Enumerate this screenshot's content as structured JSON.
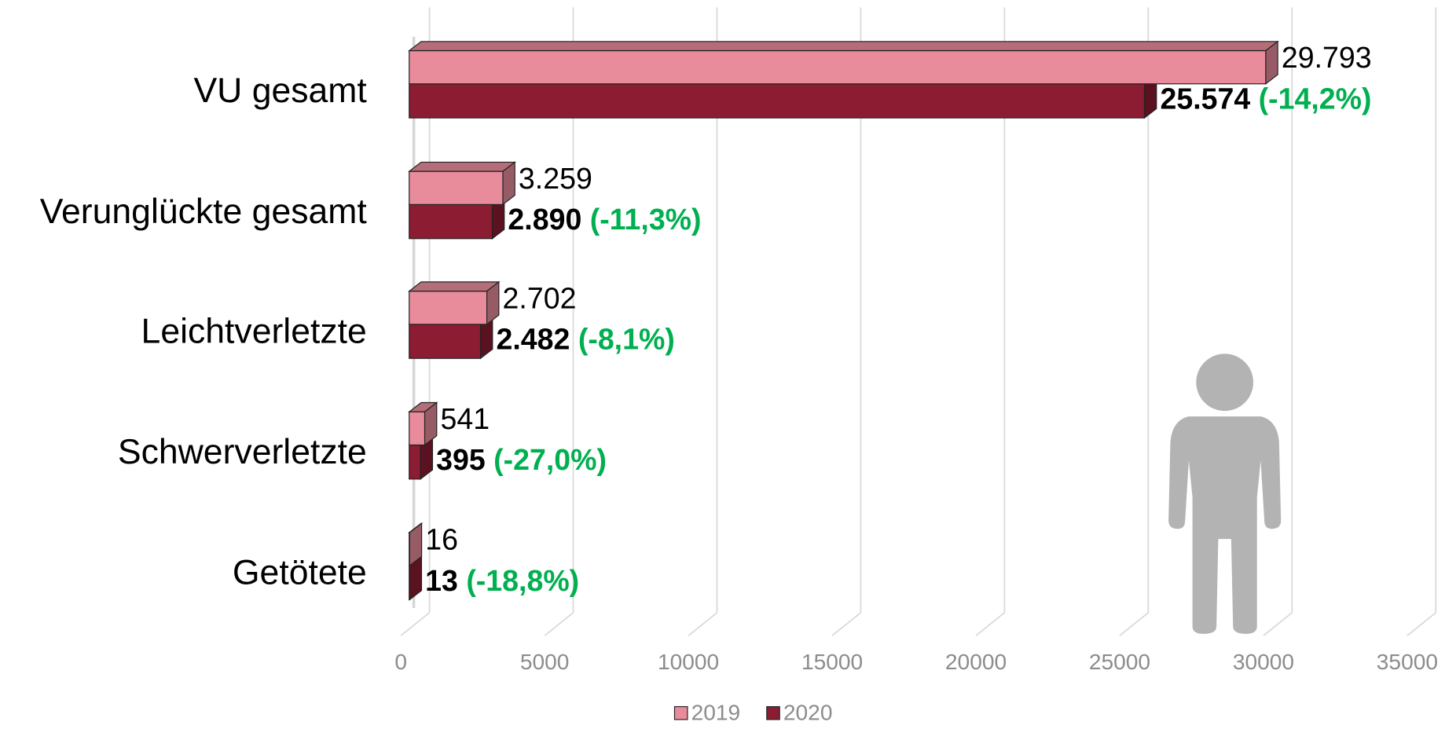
{
  "chart_data": {
    "type": "bar3d_horizontal",
    "categories": [
      "VU gesamt",
      "Verunglückte gesamt",
      "Leichtverletzte",
      "Schwerverletzte",
      "Getötete"
    ],
    "series": [
      {
        "name": "2019",
        "color": "#e88c9b",
        "values": [
          29793,
          3259,
          2702,
          541,
          16
        ],
        "value_labels": [
          "29.793",
          "3.259",
          "2.702",
          "541",
          "16"
        ]
      },
      {
        "name": "2020",
        "color": "#8b1c32",
        "values": [
          25574,
          2890,
          2482,
          395,
          13
        ],
        "value_labels": [
          "25.574",
          "2.890",
          "2.482",
          "395",
          "13"
        ],
        "annotations": [
          "(-14,2%)",
          "(-11,3%)",
          "(-8,1%)",
          "(-27,0%)",
          "(-18,8%)"
        ],
        "annotation_color": "#00b050"
      }
    ],
    "xlim": [
      0,
      35000
    ],
    "xticks": [
      0,
      5000,
      10000,
      15000,
      20000,
      25000,
      30000,
      35000
    ],
    "grid": true,
    "legend": "bottom"
  }
}
